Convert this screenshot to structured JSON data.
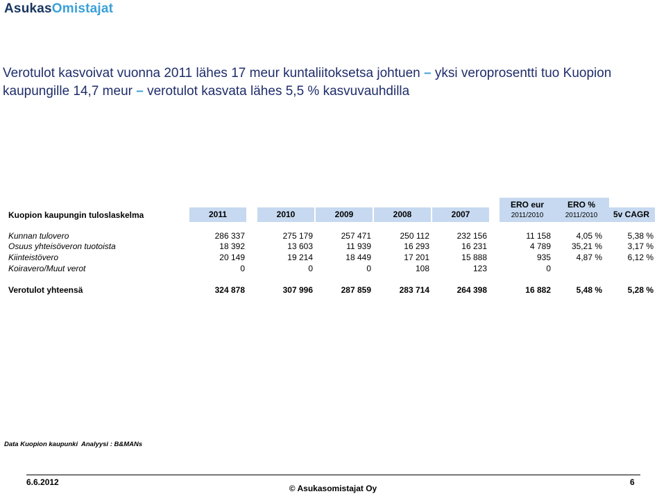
{
  "logo": {
    "part1": "Asukas",
    "part2": "Omistajat"
  },
  "title": {
    "part1": "Verotulot kasvoivat vuonna 2011 lähes 17 meur  kuntaliitoksetsa johtuen ",
    "dash1": "–",
    "part2": " yksi veroprosentti tuo Kuopion kaupungille 14,7 meur ",
    "dash2": "–",
    "part3": " verotulot kasvata lähes 5,5  % kasvuvauhdilla"
  },
  "table": {
    "header_label": "Kuopion kaupungin tuloslaskelma",
    "years": [
      "2011",
      "2010",
      "2009",
      "2008",
      "2007"
    ],
    "ero_eur": {
      "title": "ERO eur",
      "sub": "2011/2010"
    },
    "ero_pct": {
      "title": "ERO %",
      "sub": "2011/2010"
    },
    "cagr": "5v CAGR",
    "rows": [
      {
        "label": "Kunnan tulovero",
        "values": [
          "286 337",
          "275 179",
          "257 471",
          "250 112",
          "232 156"
        ],
        "ero_eur": "11 158",
        "ero_pct": "4,05 %",
        "cagr": "5,38 %"
      },
      {
        "label": "Osuus yhteisöveron tuotoista",
        "values": [
          "18 392",
          "13 603",
          "11 939",
          "16 293",
          "16 231"
        ],
        "ero_eur": "4 789",
        "ero_pct": "35,21 %",
        "cagr": "3,17 %"
      },
      {
        "label": "Kiinteistövero",
        "values": [
          "20 149",
          "19 214",
          "18 449",
          "17 201",
          "15 888"
        ],
        "ero_eur": "935",
        "ero_pct": "4,87 %",
        "cagr": "6,12 %"
      },
      {
        "label": "Koiravero/Muut verot",
        "values": [
          "0",
          "0",
          "0",
          "108",
          "123"
        ],
        "ero_eur": "0",
        "ero_pct": "",
        "cagr": ""
      }
    ],
    "total": {
      "label": "Verotulot yhteensä",
      "values": [
        "324 878",
        "307 996",
        "287 859",
        "283 714",
        "264 398"
      ],
      "ero_eur": "16 882",
      "ero_pct": "5,48 %",
      "cagr": "5,28 %"
    }
  },
  "source": {
    "data": "Data Kuopion kaupunki",
    "analysis": "Analyysi : B&MANs"
  },
  "footer": {
    "date": "6.6.2012",
    "copyright": "© Asukasomistajat Oy",
    "page": "6"
  },
  "colors": {
    "header_fill": "#c6d9f0",
    "title": "#1f2d6b",
    "accent": "#3aa0d8",
    "logo_dark": "#17345f"
  }
}
